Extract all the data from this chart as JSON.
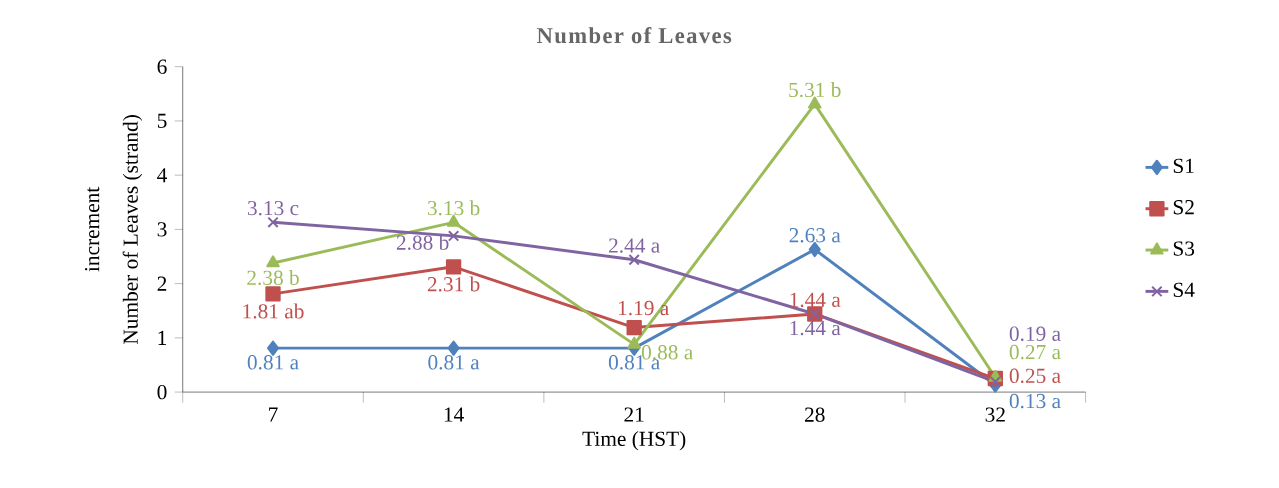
{
  "chart_data": {
    "type": "line",
    "title": "Number of Leaves",
    "xlabel": "Time (HST)",
    "ylabel": "Number of Leaves (strand)",
    "annotations": [
      "increment"
    ],
    "categories": [
      "7",
      "14",
      "21",
      "28",
      "32"
    ],
    "ylim": [
      0,
      6
    ],
    "yticks": [
      0,
      1,
      2,
      3,
      4,
      5,
      6
    ],
    "grid": false,
    "legend": "right",
    "line_style": "solid",
    "series": [
      {
        "name": "S1",
        "color": "#4f81bd",
        "marker": "diamond",
        "values": [
          0.81,
          0.81,
          0.81,
          2.63,
          0.13
        ],
        "value_labels": [
          "0.81 a",
          "0.81 a",
          "0.81 a",
          "2.63 a",
          "0.13 a"
        ]
      },
      {
        "name": "S2",
        "color": "#c0504d",
        "marker": "square",
        "values": [
          1.81,
          2.31,
          1.19,
          1.44,
          0.25
        ],
        "value_labels": [
          "1.81 ab",
          "2.31 b",
          "1.19 a",
          "1.44 a",
          "0.25 a"
        ]
      },
      {
        "name": "S3",
        "color": "#9bbb59",
        "marker": "triangle",
        "values": [
          2.38,
          3.13,
          0.88,
          5.31,
          0.27
        ],
        "value_labels": [
          "2.38 b",
          "3.13 b",
          "0.88 a",
          "5.31 b",
          "0.27 a"
        ]
      },
      {
        "name": "S4",
        "color": "#8064a2",
        "marker": "cross",
        "values": [
          3.13,
          2.88,
          2.44,
          1.44,
          0.19
        ],
        "value_labels": [
          "3.13 c",
          "2.88 b",
          "2.44 a",
          "1.44 a",
          "0.19 a"
        ]
      }
    ]
  }
}
